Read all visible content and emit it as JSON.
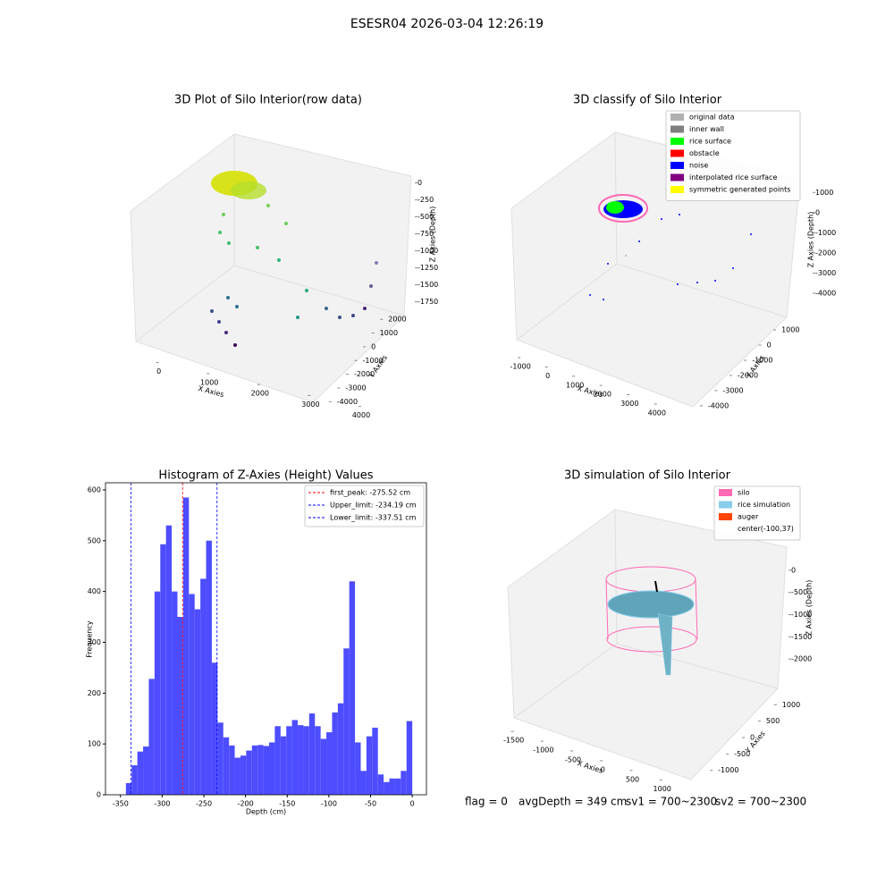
{
  "title": "ESESR04 2026-03-04 12:26:19",
  "chart_data": [
    {
      "type": "scatter3d",
      "title": "3D Plot of Silo Interior(row data)",
      "xlabel": "X Axies",
      "ylabel": "Y Axies",
      "zlabel": "Z Axies (Depth)",
      "xlim": [
        -700,
        4600
      ],
      "ylim": [
        2600,
        -4500
      ],
      "zlim": [
        100,
        -1900
      ],
      "xticks": [
        0,
        1000,
        2000,
        3000,
        4000
      ],
      "yticks": [
        2000,
        1000,
        0,
        -1000,
        -2000,
        -3000,
        -4000
      ],
      "zticks": [
        0,
        -250,
        -500,
        -750,
        -1000,
        -1250,
        -1500,
        -1750
      ]
    },
    {
      "type": "scatter3d",
      "title": "3D classify of Silo Interior",
      "xlabel": "X Axies",
      "ylabel": "Y Axies",
      "zlabel": "Z Axies (Depth)",
      "xlim": [
        -1300,
        4400
      ],
      "ylim": [
        1300,
        -4300
      ],
      "zlim": [
        1100,
        -4400
      ],
      "xticks": [
        -1000,
        0,
        1000,
        2000,
        3000,
        4000
      ],
      "yticks": [
        1000,
        0,
        -1000,
        -2000,
        -3000,
        -4000
      ],
      "zticks": [
        1000,
        0,
        -1000,
        -2000,
        -3000,
        -4000
      ],
      "legend": [
        {
          "name": "original data",
          "color": "#b0b0b0"
        },
        {
          "name": "inner wall",
          "color": "#808080"
        },
        {
          "name": "rice surface",
          "color": "#00ff00"
        },
        {
          "name": "obstacle",
          "color": "#ff0000"
        },
        {
          "name": "noise",
          "color": "#0000ff"
        },
        {
          "name": "interpolated rice surface",
          "color": "#800080"
        },
        {
          "name": "symmetric generated points",
          "color": "#ffff00"
        }
      ]
    },
    {
      "type": "histogram",
      "title": "Histogram of Z-Axies (Height) Values",
      "xlabel": "Depth (cm)",
      "ylabel": "Frequency",
      "color": "#4d4dff",
      "bins": [
        -343.5,
        -336.63,
        -329.76,
        -322.89,
        -316.02,
        -309.15,
        -302.28,
        -295.41,
        -288.54,
        -281.67,
        -274.8,
        -267.93,
        -261.06,
        -254.19,
        -247.32,
        -240.45,
        -233.58,
        -226.71,
        -219.84,
        -212.97,
        -206.1,
        -199.23,
        -192.36,
        -185.49,
        -178.62,
        -171.75,
        -164.88,
        -158.01,
        -151.14,
        -144.27,
        -137.4,
        -130.53,
        -123.66,
        -116.79,
        -109.92,
        -103.05,
        -96.18,
        -89.31,
        -82.44,
        -75.57,
        -68.7,
        -61.83,
        -54.96,
        -48.09,
        -41.22,
        -34.35,
        -27.48,
        -20.61,
        -13.74,
        -6.87,
        0
      ],
      "values": [
        23,
        58,
        85,
        95,
        228,
        400,
        493,
        530,
        400,
        350,
        585,
        395,
        365,
        425,
        500,
        260,
        142,
        113,
        97,
        73,
        77,
        87,
        97,
        98,
        96,
        103,
        135,
        115,
        135,
        147,
        137,
        135,
        160,
        135,
        110,
        123,
        162,
        180,
        288,
        420,
        103,
        47,
        115,
        132,
        40,
        25,
        32,
        32,
        47,
        145
      ],
      "xlim": [
        -368,
        17
      ],
      "ylim": [
        0,
        614
      ],
      "xticks": [
        -350,
        -300,
        -250,
        -200,
        -150,
        -100,
        -50,
        0
      ],
      "yticks": [
        0,
        100,
        200,
        300,
        400,
        500,
        600
      ],
      "vlines": [
        {
          "name": "first_peak: -275.52 cm",
          "value": -275.52,
          "color": "#ff0000"
        },
        {
          "name": "Upper_limit: -234.19 cm",
          "value": -234.19,
          "color": "#0000ff"
        },
        {
          "name": "Lower_limit: -337.51 cm",
          "value": -337.51,
          "color": "#0000ff"
        }
      ]
    },
    {
      "type": "surface3d",
      "title": "3D simulation of Silo Interior",
      "xlabel": "X Axies",
      "ylabel": "Y Axies",
      "zlabel": "Z Axies (Depth)",
      "xlim": [
        -1600,
        1200
      ],
      "ylim": [
        1200,
        -1200
      ],
      "zlim": [
        400,
        -2300
      ],
      "xticks": [
        -1500,
        -1000,
        -500,
        0,
        500,
        1000
      ],
      "yticks": [
        1000,
        500,
        0,
        -500,
        -1000
      ],
      "zticks": [
        0,
        -500,
        -1000,
        -1500,
        -2000
      ],
      "legend": [
        {
          "name": "silo",
          "color": "#ff69b4"
        },
        {
          "name": "rice simulation",
          "color": "#87ceeb"
        },
        {
          "name": "auger",
          "color": "#ff4500"
        },
        {
          "name": "center(-100,37)"
        }
      ]
    }
  ],
  "footer": {
    "flag": "flag = 0",
    "avgDepth": "avgDepth = 349 cm",
    "sv1": "sv1 = 700~2300",
    "sv2": "sv2 = 700~2300"
  }
}
